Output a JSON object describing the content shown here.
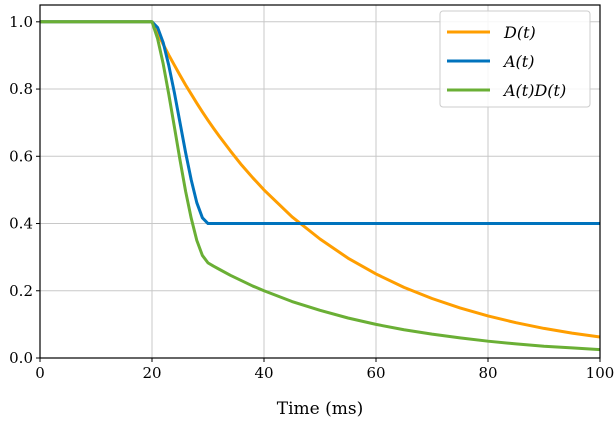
{
  "chart_data": {
    "type": "line",
    "xlabel": "Time (ms)",
    "ylabel": "",
    "xlim": [
      0,
      100
    ],
    "ylim": [
      0,
      1.05
    ],
    "xticks": [
      0,
      20,
      40,
      60,
      80,
      100
    ],
    "yticks": [
      0.0,
      0.2,
      0.4,
      0.6,
      0.8,
      1.0
    ],
    "xtick_labels": [
      "0",
      "20",
      "40",
      "60",
      "80",
      "100"
    ],
    "ytick_labels": [
      "0.0",
      "0.2",
      "0.4",
      "0.6",
      "0.8",
      "1.0"
    ],
    "grid": true,
    "legend_position": "top-right",
    "x": [
      0,
      20,
      21,
      22,
      23,
      24,
      25,
      26,
      27,
      28,
      29,
      30,
      31,
      32,
      34,
      36,
      38,
      40,
      45,
      50,
      55,
      60,
      65,
      70,
      75,
      80,
      85,
      90,
      95,
      100
    ],
    "series": [
      {
        "name": "D(t)",
        "color": "#ff9e00",
        "values": [
          1,
          1,
          0.966,
          0.933,
          0.901,
          0.871,
          0.841,
          0.812,
          0.785,
          0.758,
          0.732,
          0.707,
          0.683,
          0.66,
          0.616,
          0.574,
          0.536,
          0.5,
          0.42,
          0.354,
          0.297,
          0.25,
          0.21,
          0.177,
          0.149,
          0.125,
          0.105,
          0.088,
          0.074,
          0.0625
        ]
      },
      {
        "name": "A(t)",
        "color": "#0073bd",
        "values": [
          1,
          1,
          0.983,
          0.938,
          0.87,
          0.789,
          0.7,
          0.611,
          0.53,
          0.462,
          0.417,
          0.4,
          0.4,
          0.4,
          0.4,
          0.4,
          0.4,
          0.4,
          0.4,
          0.4,
          0.4,
          0.4,
          0.4,
          0.4,
          0.4,
          0.4,
          0.4,
          0.4,
          0.4,
          0.4
        ]
      },
      {
        "name": "A(t)D(t)",
        "color": "#6aaf35",
        "values": [
          1,
          1,
          0.95,
          0.875,
          0.784,
          0.687,
          0.589,
          0.496,
          0.416,
          0.35,
          0.305,
          0.283,
          0.273,
          0.264,
          0.246,
          0.23,
          0.214,
          0.2,
          0.168,
          0.142,
          0.119,
          0.1,
          0.084,
          0.071,
          0.06,
          0.05,
          0.042,
          0.035,
          0.03,
          0.025
        ]
      }
    ]
  }
}
